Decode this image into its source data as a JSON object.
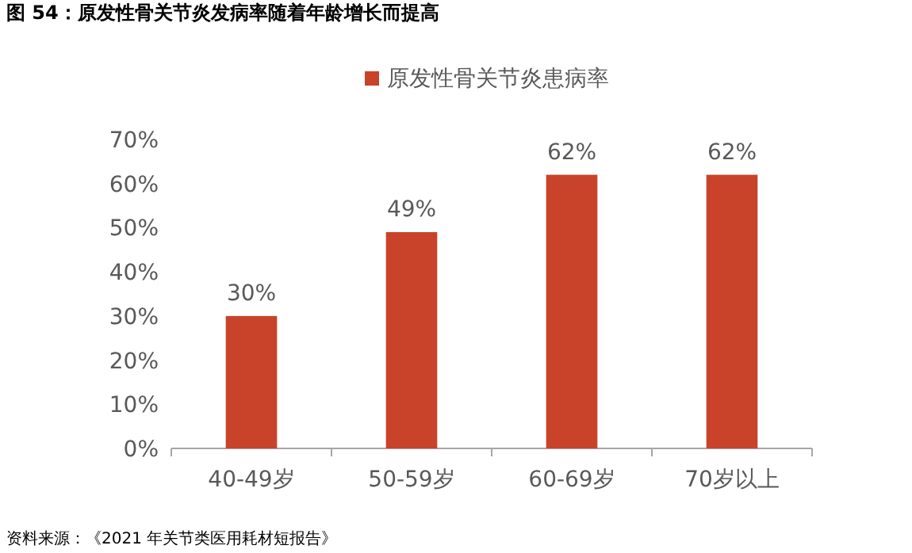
{
  "chart_data": {
    "type": "bar",
    "title": "图 54：原发性骨关节炎发病率随着年龄增长而提高",
    "categories": [
      "40-49岁",
      "50-59岁",
      "60-69岁",
      "70岁以上"
    ],
    "series": [
      {
        "name": "原发性骨关节炎患病率",
        "color": "#c8432a",
        "values": [
          30,
          49,
          62,
          62
        ],
        "value_labels": [
          "30%",
          "49%",
          "62%",
          "62%"
        ]
      }
    ],
    "ylim": [
      0,
      70
    ],
    "yticks": [
      {
        "value": 0,
        "label": "0%"
      },
      {
        "value": 10,
        "label": "10%"
      },
      {
        "value": 20,
        "label": "20%"
      },
      {
        "value": 30,
        "label": "30%"
      },
      {
        "value": 40,
        "label": "40%"
      },
      {
        "value": 50,
        "label": "50%"
      },
      {
        "value": 60,
        "label": "60%"
      },
      {
        "value": 70,
        "label": "70%"
      }
    ],
    "grid": false,
    "legend": "top",
    "annotations": [
      "资料来源：《2021 年关节类医用耗材短报告》"
    ]
  }
}
